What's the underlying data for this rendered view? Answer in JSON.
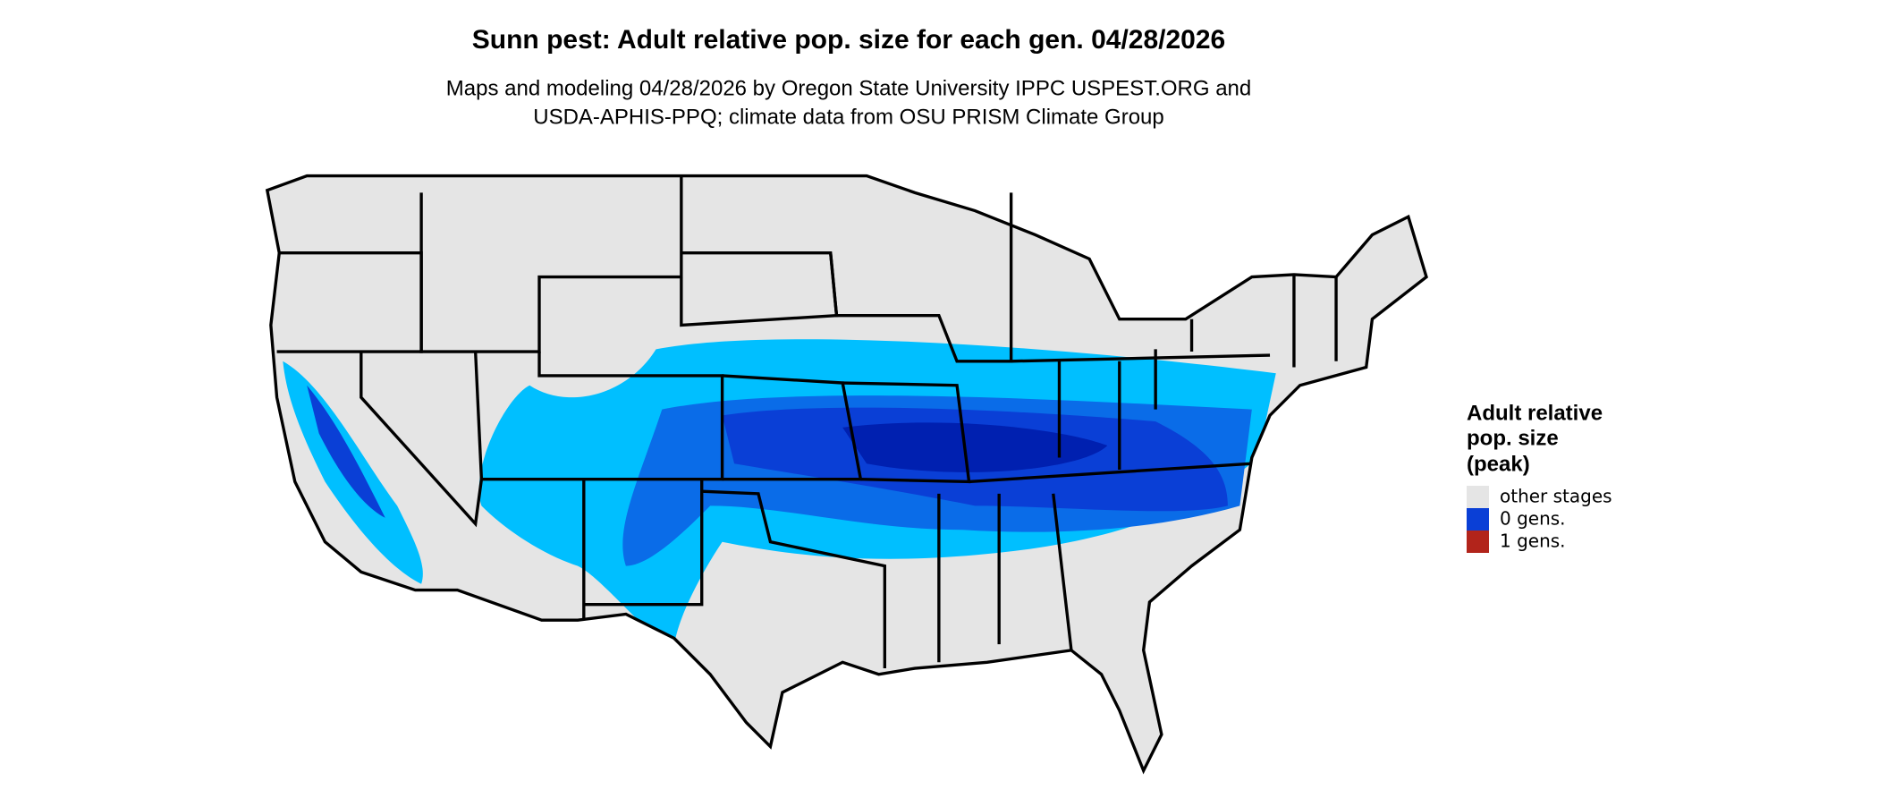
{
  "title": "Sunn pest: Adult relative pop. size for each gen. 04/28/2026",
  "subtitle": [
    "Maps and modeling 04/28/2026 by Oregon State University IPPC USPEST.ORG and",
    "USDA-APHIS-PPQ; climate data from OSU PRISM Climate Group"
  ],
  "legend": {
    "title": [
      "Adult relative",
      "pop. size",
      "(peak)"
    ],
    "items": [
      {
        "label": "other stages",
        "color": "#e5e5e5"
      },
      {
        "label": "0 gens.",
        "color": "#0a3fd6"
      },
      {
        "label": "1 gens.",
        "color": "#b2241b"
      }
    ]
  }
}
